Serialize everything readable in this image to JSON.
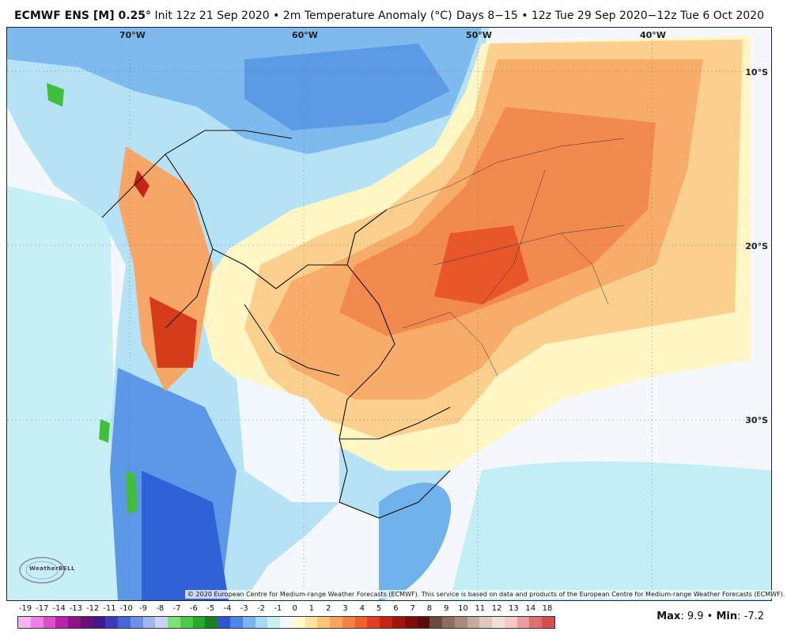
{
  "header": {
    "model": "ECMWF ENS [M] 0.25",
    "degree": "°",
    "init": "Init 12z 21 Sep 2020",
    "sep": "•",
    "field": "2m Temperature Anomaly (°C)",
    "valid": "Days 8−15 • 12z Tue 29 Sep 2020−12z Tue 6 Oct 2020"
  },
  "map": {
    "lon_labels": [
      "70°W",
      "60°W",
      "50°W",
      "40°W"
    ],
    "lat_labels": [
      "10°S",
      "20°S",
      "30°S"
    ],
    "credit": "© 2020 European Centre for Medium-range Weather Forecasts (ECMWF). This service is based on data and products of the European Centre for Medium-range Weather Forecasts (ECMWF).",
    "watermark": "WeatherBELL"
  },
  "colorbar": {
    "labels": [
      "-19",
      "-17",
      "-14",
      "-13",
      "-12",
      "-11",
      "-10",
      "-9",
      "-8",
      "-7",
      "-6",
      "-5",
      "-4",
      "-3",
      "-2",
      "-1",
      "0",
      "1",
      "2",
      "3",
      "4",
      "5",
      "6",
      "7",
      "8",
      "9",
      "10",
      "11",
      "12",
      "13",
      "14",
      "18"
    ],
    "colors": [
      "#f7b3f2",
      "#ef7fe6",
      "#d94fcc",
      "#b824a8",
      "#8e1585",
      "#6a0f73",
      "#3e1a8e",
      "#3b3db8",
      "#4766d6",
      "#6f8fe6",
      "#a4b4ee",
      "#c9d3f4",
      "#7fe07a",
      "#4cc84a",
      "#26a92b",
      "#1e7f22",
      "#2f56d2",
      "#4d86e8",
      "#7eb3f0",
      "#a8d8f6",
      "#c8f0f6",
      "#f2f8fd",
      "#fffbd0",
      "#fde69c",
      "#fbc57c",
      "#f8a45c",
      "#f58240",
      "#ef6030",
      "#e03e22",
      "#c42416",
      "#a0160e",
      "#7a0e08",
      "#5a0b05",
      "#6b4a3c",
      "#8c6c5c",
      "#a88a7a",
      "#c4aa9c",
      "#dcc8bc",
      "#f0e0d8",
      "#f6c8c8",
      "#ec9c9c",
      "#e07070",
      "#d45050"
    ]
  },
  "stats": {
    "max_label": "Max",
    "max_value": ": 9.9",
    "sep": "•",
    "min_label": "Min",
    "min_value": ": -7.2"
  },
  "colors": {
    "ocean": "#f4f7fc",
    "warm_strong": "#f28a50",
    "warm_mid": "#f7b070",
    "warm_light": "#fbd08c",
    "neutral_warm": "#fff7c2",
    "cool_light": "#a8ddf5",
    "cool_mid": "#6fb2ec",
    "cool_strong": "#3f78dc",
    "cool_deep": "#2552c8",
    "hot": "#e2461f",
    "hottest": "#b51a10",
    "green": "#3fbf3a"
  }
}
